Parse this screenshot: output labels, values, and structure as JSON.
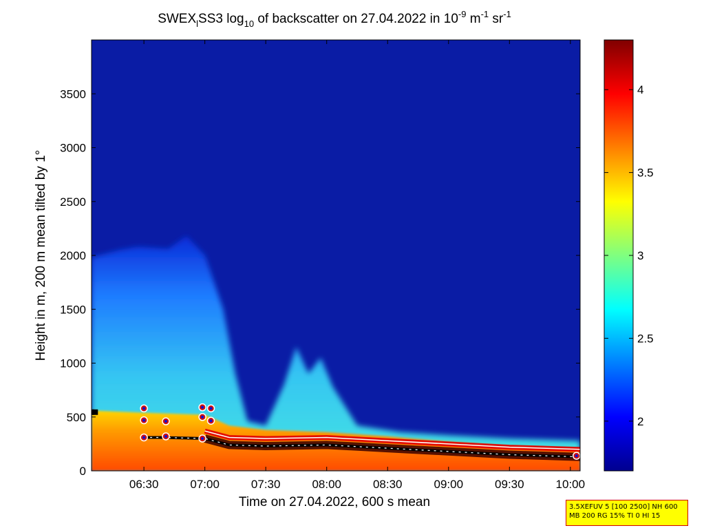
{
  "title": {
    "part1": "SWEX",
    "sub1": "l",
    "part2": "SS3 log",
    "sub2": "10",
    "part3": " of backscatter on 27.04.2022 in 10",
    "sup1": "-9",
    "part4": " m",
    "sup2": "-1",
    "part5": " sr",
    "sup3": "-1"
  },
  "info": {
    "line1": "3.5XEFUV 5 [100 2500] NH 600",
    "line2": "MB 200 RG 15% TI 0 HI 15"
  },
  "chart_data": {
    "type": "heatmap",
    "xlabel": "Time on 27.04.2022, 600 s mean",
    "ylabel": "Height in m, 200 m mean tilted by 1°",
    "x_ticks": [
      "06:30",
      "07:00",
      "07:30",
      "08:00",
      "08:30",
      "09:00",
      "09:30",
      "10:00"
    ],
    "x_tick_hours": [
      6.5,
      7.0,
      7.5,
      8.0,
      8.5,
      9.0,
      9.5,
      10.0
    ],
    "xlim": [
      6.07,
      10.08
    ],
    "y_ticks": [
      "0",
      "500",
      "1000",
      "1500",
      "2000",
      "2500",
      "3000",
      "3500"
    ],
    "y_tick_values": [
      0,
      500,
      1000,
      1500,
      2000,
      2500,
      3000,
      3500
    ],
    "ylim": [
      0,
      4000
    ],
    "colorbar_ticks": [
      "2",
      "2.5",
      "3",
      "3.5",
      "4"
    ],
    "colorbar_tick_values": [
      2,
      2.5,
      3,
      3.5,
      4
    ],
    "clim": [
      1.7,
      4.3
    ],
    "colormap": "jet",
    "background_value": 1.85,
    "aerosol_layer_top": [
      {
        "t": 6.07,
        "h": 1980
      },
      {
        "t": 6.3,
        "h": 2050
      },
      {
        "t": 6.45,
        "h": 2080
      },
      {
        "t": 6.7,
        "h": 2060
      },
      {
        "t": 6.85,
        "h": 2180
      },
      {
        "t": 7.0,
        "h": 2000
      },
      {
        "t": 7.15,
        "h": 1500
      },
      {
        "t": 7.25,
        "h": 900
      },
      {
        "t": 7.35,
        "h": 460
      },
      {
        "t": 7.5,
        "h": 420
      },
      {
        "t": 7.65,
        "h": 800
      },
      {
        "t": 7.75,
        "h": 1150
      },
      {
        "t": 7.85,
        "h": 900
      },
      {
        "t": 7.95,
        "h": 1050
      },
      {
        "t": 8.05,
        "h": 780
      },
      {
        "t": 8.25,
        "h": 420
      },
      {
        "t": 8.6,
        "h": 360
      },
      {
        "t": 9.0,
        "h": 330
      },
      {
        "t": 9.5,
        "h": 300
      },
      {
        "t": 10.08,
        "h": 280
      }
    ],
    "mixing_layer_top": [
      {
        "t": 6.07,
        "h": 560
      },
      {
        "t": 6.5,
        "h": 540
      },
      {
        "t": 7.0,
        "h": 520
      },
      {
        "t": 7.2,
        "h": 420
      },
      {
        "t": 7.5,
        "h": 380
      },
      {
        "t": 8.0,
        "h": 360
      },
      {
        "t": 8.5,
        "h": 320
      },
      {
        "t": 9.0,
        "h": 270
      },
      {
        "t": 9.5,
        "h": 230
      },
      {
        "t": 10.08,
        "h": 210
      }
    ],
    "cloud_base_line": [
      {
        "t": 6.5,
        "h": 310
      },
      {
        "t": 6.65,
        "h": 310
      },
      {
        "t": 7.0,
        "h": 300
      },
      {
        "t": 7.2,
        "h": 240
      },
      {
        "t": 7.5,
        "h": 230
      },
      {
        "t": 8.0,
        "h": 240
      },
      {
        "t": 8.5,
        "h": 210
      },
      {
        "t": 9.0,
        "h": 180
      },
      {
        "t": 9.5,
        "h": 150
      },
      {
        "t": 10.08,
        "h": 130
      }
    ],
    "detected_points": [
      {
        "t": 6.07,
        "h": 545
      },
      {
        "t": 6.1,
        "h": 545
      },
      {
        "t": 6.5,
        "h": 580
      },
      {
        "t": 6.5,
        "h": 470
      },
      {
        "t": 6.5,
        "h": 310
      },
      {
        "t": 6.68,
        "h": 460
      },
      {
        "t": 6.68,
        "h": 320
      },
      {
        "t": 6.98,
        "h": 590
      },
      {
        "t": 7.05,
        "h": 580
      },
      {
        "t": 7.05,
        "h": 465
      },
      {
        "t": 6.98,
        "h": 500
      },
      {
        "t": 6.98,
        "h": 300
      },
      {
        "t": 10.05,
        "h": 140
      }
    ]
  }
}
